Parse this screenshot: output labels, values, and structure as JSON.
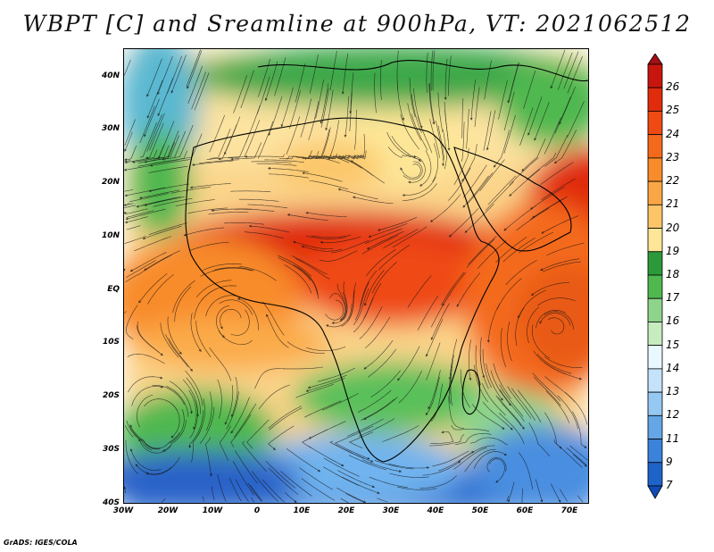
{
  "title": "WBPT [C] and Sreamline at 900hPa, VT: 2021062512",
  "footer": "GrADS: IGES/COLA",
  "map": {
    "lat_ticks": [
      "40N",
      "30N",
      "20N",
      "10N",
      "EQ",
      "10S",
      "20S",
      "30S",
      "40S"
    ],
    "lon_ticks": [
      "30W",
      "20W",
      "10W",
      "0",
      "10E",
      "20E",
      "30E",
      "40E",
      "50E",
      "60E",
      "70E"
    ],
    "extent": {
      "lon_min": -30,
      "lon_max": 75,
      "lat_min": -40,
      "lat_max": 45
    },
    "field": "wet-bulb potential temperature",
    "overlay": "streamlines"
  },
  "colorbar": {
    "labels": [
      "26",
      "25",
      "24",
      "23",
      "22",
      "21",
      "20",
      "19",
      "18",
      "17",
      "16",
      "15",
      "14",
      "13",
      "12",
      "11",
      "9",
      "7"
    ],
    "colors": [
      "#a50f15",
      "#c8160f",
      "#e02c0c",
      "#ef4a13",
      "#f46a1d",
      "#f88b2a",
      "#fba644",
      "#fcc668",
      "#fde697",
      "#2c9a3a",
      "#4fb84f",
      "#8ed48b",
      "#c6ecc0",
      "#e9f8ff",
      "#c4e3fb",
      "#95c8f2",
      "#64a6e6",
      "#3b82db",
      "#1e63c8",
      "#0f4cb8"
    ]
  }
}
